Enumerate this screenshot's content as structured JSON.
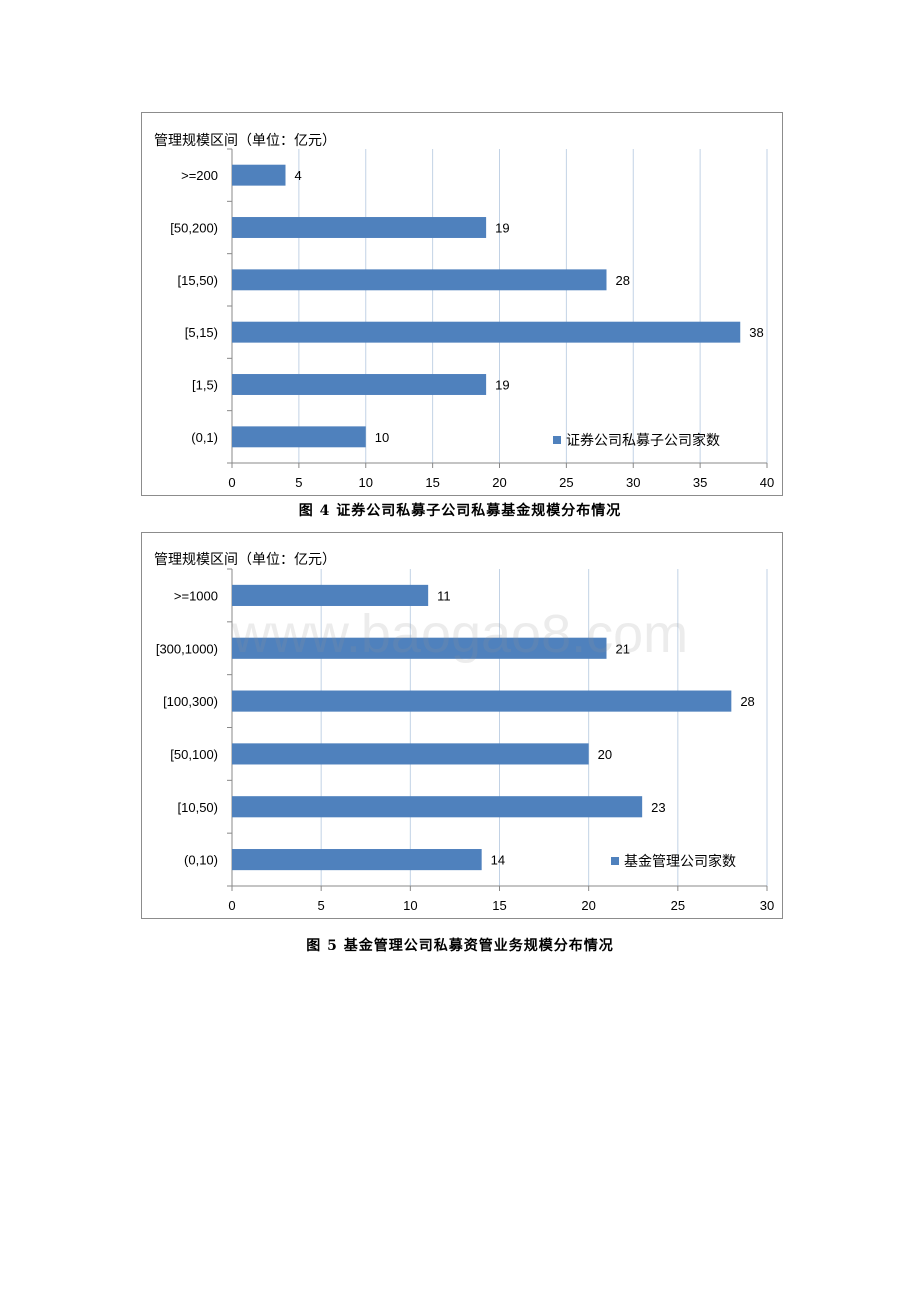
{
  "watermark": "www.baogao8.com",
  "charts": {
    "chart1": {
      "caption": "图 4  证券公司私募子公司私募基金规模分布情况",
      "chart_data": {
        "type": "bar",
        "orientation": "horizontal",
        "title": "管理规模区间（单位：亿元）",
        "categories": [
          ">=200",
          "[50,200)",
          "[15,50)",
          "[5,15)",
          "[1,5)",
          "(0,1)"
        ],
        "series": [
          {
            "name": "证券公司私募子公司家数",
            "values": [
              4,
              19,
              28,
              38,
              19,
              10
            ]
          }
        ],
        "xlim": [
          0,
          40
        ],
        "xticks": [
          0,
          5,
          10,
          15,
          20,
          25,
          30,
          35,
          40
        ],
        "grid": true,
        "bar_color": "#4f81bd",
        "gridline_color": "#c2d2e5",
        "legend_position": "bottom-right"
      }
    },
    "chart2": {
      "caption": "图 5  基金管理公司私募资管业务规模分布情况",
      "chart_data": {
        "type": "bar",
        "orientation": "horizontal",
        "title": "管理规模区间（单位：亿元）",
        "categories": [
          ">=1000",
          "[300,1000)",
          "[100,300)",
          "[50,100)",
          "[10,50)",
          "(0,10)"
        ],
        "series": [
          {
            "name": "基金管理公司家数",
            "values": [
              11,
              21,
              28,
              20,
              23,
              14
            ]
          }
        ],
        "xlim": [
          0,
          30
        ],
        "xticks": [
          0,
          5,
          10,
          15,
          20,
          25,
          30
        ],
        "grid": true,
        "bar_color": "#4f81bd",
        "gridline_color": "#c2d2e5",
        "legend_position": "bottom-right"
      }
    }
  }
}
